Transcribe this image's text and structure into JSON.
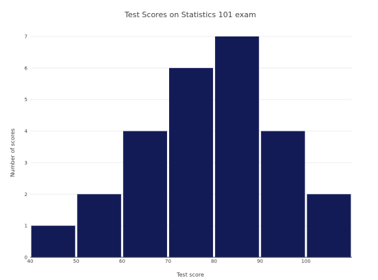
{
  "chart_data": {
    "type": "bar",
    "title": "Test Scores on Statistics 101 exam",
    "xlabel": "Test score",
    "ylabel": "Number of scores",
    "bins": [
      {
        "start": 40,
        "end": 50,
        "value": 1
      },
      {
        "start": 50,
        "end": 60,
        "value": 2
      },
      {
        "start": 60,
        "end": 70,
        "value": 4
      },
      {
        "start": 70,
        "end": 80,
        "value": 6
      },
      {
        "start": 80,
        "end": 90,
        "value": 7
      },
      {
        "start": 90,
        "end": 100,
        "value": 4
      },
      {
        "start": 100,
        "end": 110,
        "value": 2
      }
    ],
    "x_ticks": [
      "40",
      "50",
      "60",
      "70",
      "80",
      "90",
      "100"
    ],
    "y_ticks": [
      "0",
      "1",
      "2",
      "3",
      "4",
      "5",
      "6",
      "7"
    ],
    "xlim": [
      40,
      110
    ],
    "ylim": [
      0,
      7
    ],
    "grid": true,
    "bar_color": "#131b57"
  }
}
